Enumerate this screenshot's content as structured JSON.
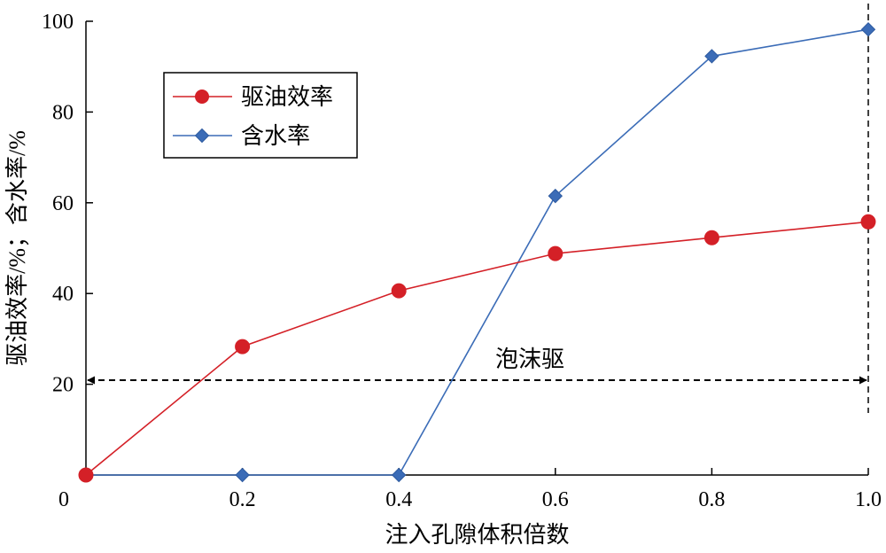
{
  "chart_data": {
    "type": "line",
    "xlabel": "注入孔隙体积倍数",
    "ylabel": "驱油效率/%；含水率/%",
    "xlim": [
      0,
      1.0
    ],
    "ylim": [
      0,
      100
    ],
    "x_ticks": [
      0,
      0.2,
      0.4,
      0.6,
      0.8,
      1.0
    ],
    "x_tick_labels": [
      "0",
      "0.2",
      "0.4",
      "0.6",
      "0.8",
      "1.0"
    ],
    "y_ticks": [
      20,
      40,
      60,
      80,
      100
    ],
    "y_tick_labels": [
      "20",
      "40",
      "60",
      "80",
      "100"
    ],
    "grid": false,
    "legend_position": "upper-left",
    "series": [
      {
        "name": "驱油效率",
        "color": "#d42027",
        "marker": "circle",
        "x": [
          0,
          0.2,
          0.4,
          0.6,
          0.8,
          1.0
        ],
        "values": [
          0,
          28.3,
          40.6,
          48.8,
          52.3,
          55.8
        ]
      },
      {
        "name": "含水率",
        "color": "#3b6cb7",
        "marker": "diamond",
        "x": [
          0,
          0.2,
          0.4,
          0.6,
          0.8,
          1.0
        ],
        "values": [
          0,
          0,
          0,
          61.5,
          92.3,
          98.2
        ]
      }
    ],
    "annotations": [
      {
        "text": "泡沫驱",
        "type": "double-arrow",
        "x_range": [
          0,
          1.0
        ],
        "y": 25
      },
      {
        "type": "vertical-dashed-line",
        "x": 1.0
      }
    ]
  }
}
